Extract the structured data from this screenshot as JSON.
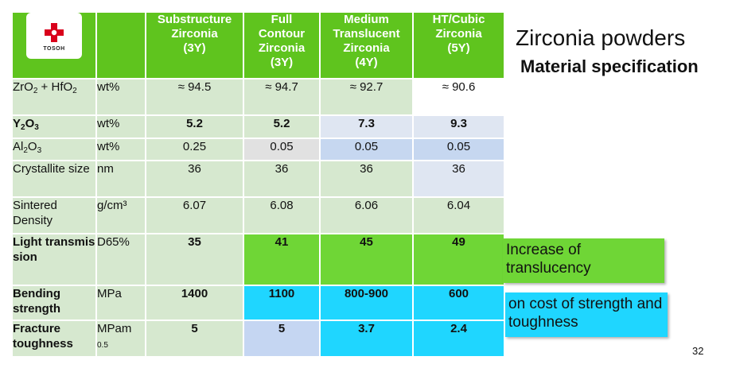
{
  "logo": {
    "text": "TOSOH"
  },
  "title": "Zirconia powders",
  "subtitle": "Material specification",
  "columns": [
    {
      "line1": "Substructure",
      "line2": "Zirconia",
      "line3": "(3Y)",
      "line4": ""
    },
    {
      "line1": "Full",
      "line2": "Contour",
      "line3": "Zirconia",
      "line4": "(3Y)"
    },
    {
      "line1": "Medium",
      "line2": "Translucent",
      "line3": "Zirconia",
      "line4": "(4Y)"
    },
    {
      "line1": "HT/Cubic",
      "line2": "Zirconia",
      "line3": "(5Y)",
      "line4": ""
    }
  ],
  "rows": {
    "zro2": {
      "name_a": "ZrO",
      "sub_a": "2",
      "name_b": " + HfO",
      "sub_b": "2",
      "unit": "wt%",
      "values": [
        "≈ 94.5",
        "≈ 94.7",
        "≈ 92.7",
        "≈ 90.6"
      ]
    },
    "y2o3": {
      "name_a": "Y",
      "sub_a": "2",
      "name_b": "O",
      "sub_b": "3",
      "unit": "wt%",
      "values": [
        "5.2",
        "5.2",
        "7.3",
        "9.3"
      ]
    },
    "al2o3": {
      "name_a": "Al",
      "sub_a": "2",
      "name_b": "O",
      "sub_b": "3",
      "unit": "wt%",
      "values": [
        "0.25",
        "0.05",
        "0.05",
        "0.05"
      ]
    },
    "crystallite": {
      "name": "Crystallite size",
      "unit": "nm",
      "values": [
        "36",
        "36",
        "36",
        "36"
      ]
    },
    "density": {
      "name": "Sintered Density",
      "unit": "g/cm³",
      "values": [
        "6.07",
        "6.08",
        "6.06",
        "6.04"
      ]
    },
    "light": {
      "name": "Light transmission",
      "unit": "D65%",
      "values": [
        "35",
        "41",
        "45",
        "49"
      ]
    },
    "bending": {
      "name": "Bending strength",
      "unit": "MPa",
      "values": [
        "1400",
        "1100",
        "800-900",
        "600"
      ]
    },
    "fracture": {
      "name": "Fracture toughness",
      "unit_main": "MPam",
      "unit_sup": "0.5",
      "values": [
        "5",
        "5",
        "3.7",
        "2.4"
      ]
    }
  },
  "callouts": {
    "translucency": "Increase of translucency",
    "cost": "on cost of strength and toughness"
  },
  "page_number": "32",
  "colors": {
    "header_green": "#5fc41e",
    "row_green": "#d6e8cf",
    "bright_green": "#6fd636",
    "cyan": "#1fd6ff",
    "light_blue": "#c6d7f0"
  }
}
